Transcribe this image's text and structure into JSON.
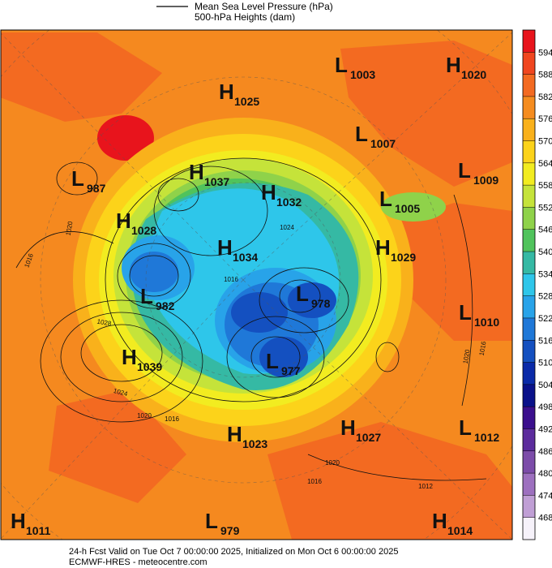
{
  "legend": {
    "line_label": "Mean Sea Level Pressure (hPa)",
    "fill_label": "500-hPa Heights (dam)"
  },
  "colorbar": {
    "levels": [
      594,
      588,
      582,
      576,
      570,
      564,
      558,
      552,
      546,
      540,
      534,
      528,
      522,
      516,
      510,
      504,
      498,
      492,
      486,
      480,
      474,
      468
    ],
    "colors": [
      "#e8141c",
      "#f0461f",
      "#f36a21",
      "#f58c1f",
      "#f9b11b",
      "#fcd31a",
      "#f2ec20",
      "#c5e33a",
      "#8fd24a",
      "#50c35c",
      "#35b9a4",
      "#2ec6ea",
      "#28a3e9",
      "#1f78d8",
      "#1450c0",
      "#0a2aa8",
      "#0a118a",
      "#3b0f8d",
      "#5c2c9d",
      "#7c4ca9",
      "#9d70bf",
      "#c09fd5",
      "#f6f2fa"
    ]
  },
  "centers": [
    {
      "type": "L",
      "value": 1003
    },
    {
      "type": "H",
      "value": 1020
    },
    {
      "type": "H",
      "value": 1025
    },
    {
      "type": "L",
      "value": 1007
    },
    {
      "type": "L",
      "value": 987
    },
    {
      "type": "H",
      "value": 1037
    },
    {
      "type": "H",
      "value": 1032
    },
    {
      "type": "L",
      "value": 1009
    },
    {
      "type": "L",
      "value": 1005
    },
    {
      "type": "H",
      "value": 1028
    },
    {
      "type": "H",
      "value": 1034
    },
    {
      "type": "H",
      "value": 1029
    },
    {
      "type": "L",
      "value": 982
    },
    {
      "type": "L",
      "value": 978
    },
    {
      "type": "L",
      "value": 1010
    },
    {
      "type": "H",
      "value": 1039
    },
    {
      "type": "L",
      "value": 977
    },
    {
      "type": "H",
      "value": 1027
    },
    {
      "type": "L",
      "value": 1012
    },
    {
      "type": "H",
      "value": 1023
    },
    {
      "type": "H",
      "value": 1011
    },
    {
      "type": "L",
      "value": 979
    },
    {
      "type": "H",
      "value": 1014
    }
  ],
  "contour_labels": [
    1016,
    1020,
    1028,
    1024,
    1020,
    1016,
    1016,
    1020,
    1016,
    1020,
    1016,
    1012,
    1024
  ],
  "footer": {
    "line1": "24-h Fcst Valid on Tue Oct  7 00:00:00 2025, Initialized on Mon Oct  6 00:00:00 2025",
    "line2": "ECMWF-HRES  - meteocentre.com"
  }
}
